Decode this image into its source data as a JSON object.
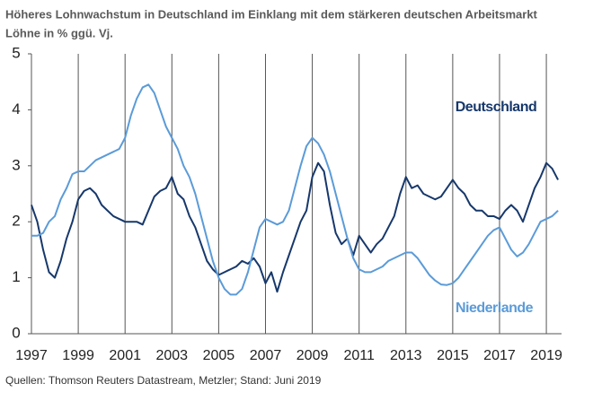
{
  "chart_data": {
    "type": "line",
    "title": "Höheres Lohnwachstum in Deutschland im Einklang mit dem stärkeren deutschen Arbeitsmarkt",
    "subtitle": "Löhne in % ggü. Vj.",
    "source": "Quellen: Thomson Reuters Datastream, Metzler; Stand: Juni 2019",
    "x": [
      1997,
      1997.25,
      1997.5,
      1997.75,
      1998,
      1998.25,
      1998.5,
      1998.75,
      1999,
      1999.25,
      1999.5,
      1999.75,
      2000,
      2000.25,
      2000.5,
      2000.75,
      2001,
      2001.25,
      2001.5,
      2001.75,
      2002,
      2002.25,
      2002.5,
      2002.75,
      2003,
      2003.25,
      2003.5,
      2003.75,
      2004,
      2004.25,
      2004.5,
      2004.75,
      2005,
      2005.25,
      2005.5,
      2005.75,
      2006,
      2006.25,
      2006.5,
      2006.75,
      2007,
      2007.25,
      2007.5,
      2007.75,
      2008,
      2008.25,
      2008.5,
      2008.75,
      2009,
      2009.25,
      2009.5,
      2009.75,
      2010,
      2010.25,
      2010.5,
      2010.75,
      2011,
      2011.25,
      2011.5,
      2011.75,
      2012,
      2012.25,
      2012.5,
      2012.75,
      2013,
      2013.25,
      2013.5,
      2013.75,
      2014,
      2014.25,
      2014.5,
      2014.75,
      2015,
      2015.25,
      2015.5,
      2015.75,
      2016,
      2016.25,
      2016.5,
      2016.75,
      2017,
      2017.25,
      2017.5,
      2017.75,
      2018,
      2018.25,
      2018.5,
      2018.75,
      2019,
      2019.25,
      2019.5
    ],
    "series": [
      {
        "name": "Deutschland",
        "color": "#17386b",
        "values": [
          2.3,
          2.0,
          1.5,
          1.1,
          1.0,
          1.3,
          1.7,
          2.0,
          2.4,
          2.55,
          2.6,
          2.5,
          2.3,
          2.2,
          2.1,
          2.05,
          2.0,
          2.0,
          2.0,
          1.95,
          2.2,
          2.45,
          2.55,
          2.6,
          2.8,
          2.5,
          2.4,
          2.1,
          1.9,
          1.6,
          1.3,
          1.15,
          1.05,
          1.1,
          1.15,
          1.2,
          1.3,
          1.25,
          1.35,
          1.2,
          0.9,
          1.1,
          0.75,
          1.1,
          1.4,
          1.7,
          2.0,
          2.2,
          2.8,
          3.05,
          2.9,
          2.3,
          1.8,
          1.6,
          1.7,
          1.4,
          1.75,
          1.6,
          1.45,
          1.6,
          1.7,
          1.9,
          2.1,
          2.5,
          2.8,
          2.6,
          2.65,
          2.5,
          2.45,
          2.4,
          2.45,
          2.6,
          2.75,
          2.6,
          2.5,
          2.3,
          2.2,
          2.2,
          2.1,
          2.1,
          2.05,
          2.2,
          2.3,
          2.2,
          2.0,
          2.3,
          2.6,
          2.8,
          3.05,
          2.95,
          2.75
        ]
      },
      {
        "name": "Niederlande",
        "color": "#5b9bd8",
        "values": [
          1.75,
          1.75,
          1.8,
          2.0,
          2.1,
          2.4,
          2.6,
          2.85,
          2.9,
          2.9,
          3.0,
          3.1,
          3.15,
          3.2,
          3.25,
          3.3,
          3.5,
          3.9,
          4.2,
          4.4,
          4.45,
          4.3,
          4.0,
          3.7,
          3.5,
          3.3,
          3.0,
          2.8,
          2.5,
          2.1,
          1.7,
          1.3,
          1.0,
          0.8,
          0.7,
          0.7,
          0.8,
          1.1,
          1.5,
          1.9,
          2.05,
          2.0,
          1.95,
          2.0,
          2.2,
          2.6,
          3.0,
          3.35,
          3.5,
          3.4,
          3.2,
          2.9,
          2.5,
          2.1,
          1.7,
          1.35,
          1.15,
          1.1,
          1.1,
          1.15,
          1.2,
          1.3,
          1.35,
          1.4,
          1.45,
          1.45,
          1.35,
          1.2,
          1.05,
          0.95,
          0.88,
          0.87,
          0.9,
          1.0,
          1.15,
          1.3,
          1.45,
          1.6,
          1.75,
          1.85,
          1.9,
          1.7,
          1.5,
          1.38,
          1.45,
          1.6,
          1.8,
          2.0,
          2.05,
          2.1,
          2.2
        ]
      }
    ],
    "xlim": [
      1997,
      2019.65
    ],
    "xticks": [
      1997,
      1999,
      2001,
      2003,
      2005,
      2007,
      2009,
      2011,
      2013,
      2015,
      2017,
      2019
    ],
    "ylim": [
      0,
      5
    ],
    "yticks": [
      0,
      1,
      2,
      3,
      4,
      5
    ],
    "grid": true
  }
}
